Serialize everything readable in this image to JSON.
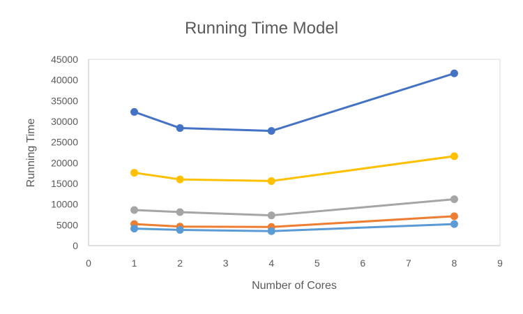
{
  "chart_data": {
    "type": "line",
    "title": "Running Time Model",
    "xlabel": "Number of Cores",
    "ylabel": "Running Time",
    "xlim": [
      0,
      9
    ],
    "ylim": [
      0,
      45000
    ],
    "x_ticks": [
      0,
      1,
      2,
      3,
      4,
      5,
      6,
      7,
      8,
      9
    ],
    "y_ticks": [
      0,
      5000,
      10000,
      15000,
      20000,
      25000,
      30000,
      35000,
      40000,
      45000
    ],
    "grid": false,
    "legend": "none",
    "x": [
      1,
      2,
      4,
      8
    ],
    "series": [
      {
        "color": "#4472C4",
        "values": [
          32300,
          28400,
          27700,
          41600
        ]
      },
      {
        "color": "#FFC000",
        "values": [
          17600,
          16000,
          15600,
          21600
        ]
      },
      {
        "color": "#A5A5A5",
        "values": [
          8600,
          8100,
          7300,
          11200
        ]
      },
      {
        "color": "#ED7D31",
        "values": [
          5200,
          4600,
          4500,
          7100
        ]
      },
      {
        "color": "#5B9BD5",
        "values": [
          4100,
          3800,
          3500,
          5200
        ]
      }
    ]
  }
}
